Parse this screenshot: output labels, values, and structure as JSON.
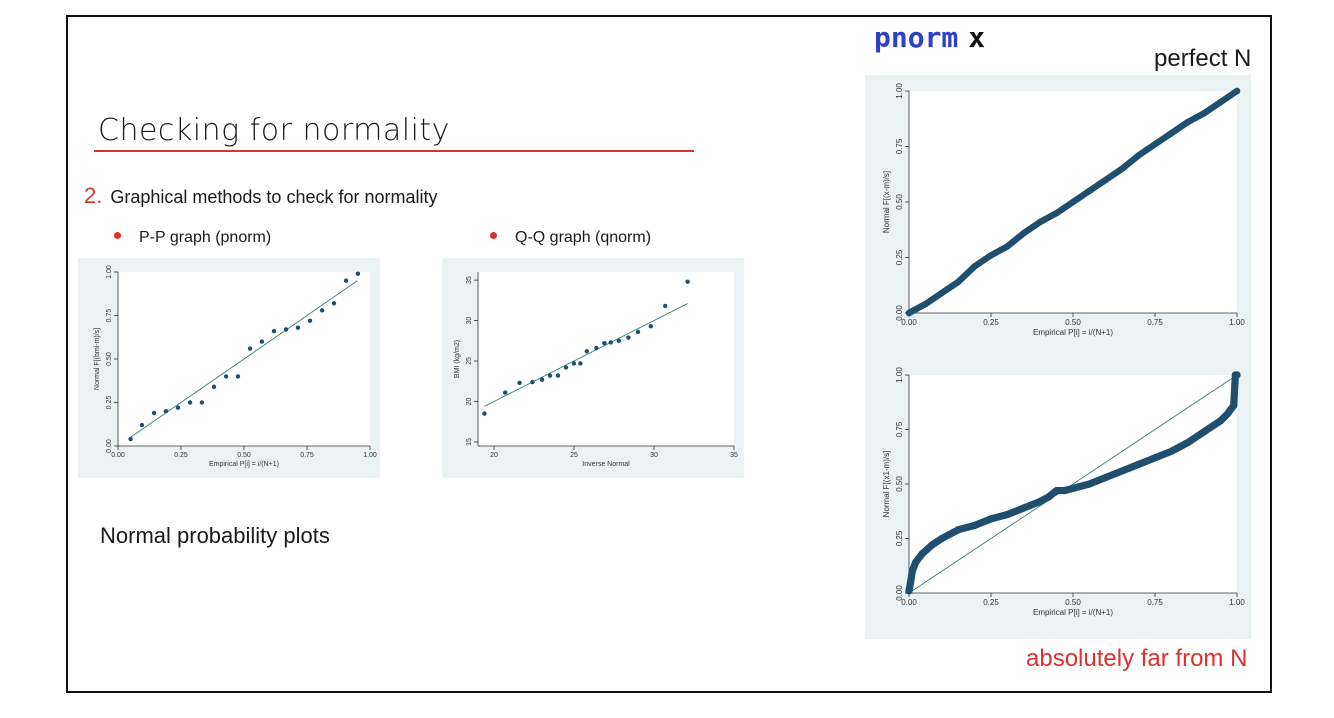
{
  "slide": {
    "title": "Checking for normality",
    "subhead_number": "2.",
    "subhead_text": "Graphical methods to check for normality",
    "bullets": [
      "P-P graph  (pnorm)",
      "Q-Q graph (qnorm)"
    ],
    "caption": "Normal probability plots",
    "command": {
      "name": "pnorm",
      "arg": "x"
    },
    "label_perfect": "perfect N",
    "label_far": "absolutely far from N"
  },
  "colors": {
    "accent_red": "#d9322f",
    "command_blue": "#2e3fc8",
    "plot_bg": "#eaf2f3",
    "marker": "#1f4e6e",
    "fit_line": "#3e7f74"
  },
  "chart_data": [
    {
      "id": "pp",
      "type": "scatter",
      "title": "",
      "xlabel": "Empirical P[i] = i/(N+1)",
      "ylabel": "Normal F[(bmi-m)/s]",
      "xlim": [
        0,
        1
      ],
      "ylim": [
        0,
        1
      ],
      "xticks": [
        0,
        0.25,
        0.5,
        0.75,
        1
      ],
      "xtick_labels": [
        "0.00",
        "0.25",
        "0.50",
        "0.75",
        "1.00"
      ],
      "yticks": [
        0,
        0.25,
        0.5,
        0.75,
        1
      ],
      "ytick_labels": [
        "0.00",
        "0.25",
        "0.50",
        "0.75",
        "1.00"
      ],
      "reference_line": {
        "x": [
          0.05,
          0.95
        ],
        "y": [
          0.05,
          0.95
        ]
      },
      "points": {
        "x": [
          0.05,
          0.095,
          0.143,
          0.19,
          0.238,
          0.286,
          0.333,
          0.381,
          0.429,
          0.476,
          0.524,
          0.571,
          0.619,
          0.667,
          0.714,
          0.762,
          0.81,
          0.857,
          0.905,
          0.952
        ],
        "y": [
          0.04,
          0.12,
          0.19,
          0.2,
          0.22,
          0.25,
          0.25,
          0.34,
          0.4,
          0.4,
          0.56,
          0.6,
          0.66,
          0.67,
          0.68,
          0.72,
          0.78,
          0.82,
          0.95,
          0.99
        ]
      }
    },
    {
      "id": "qq",
      "type": "scatter",
      "title": "",
      "xlabel": "Inverse Normal",
      "ylabel": "BMI (kg/m2)",
      "xlim": [
        19,
        35
      ],
      "ylim": [
        14.5,
        36
      ],
      "xticks": [
        20,
        25,
        30,
        35
      ],
      "xtick_labels": [
        "20",
        "25",
        "30",
        "35"
      ],
      "yticks": [
        15,
        20,
        25,
        30,
        35
      ],
      "ytick_labels": [
        "15",
        "20",
        "25",
        "30",
        "35"
      ],
      "reference_line": {
        "x": [
          19.4,
          32.1
        ],
        "y": [
          19.4,
          32.1
        ]
      },
      "points": {
        "x": [
          19.4,
          20.7,
          21.6,
          22.4,
          23.0,
          23.5,
          24.0,
          24.5,
          25.0,
          25.4,
          25.8,
          26.4,
          26.9,
          27.3,
          27.8,
          28.4,
          29.0,
          29.8,
          30.7,
          32.1
        ],
        "y": [
          18.5,
          21.1,
          22.3,
          22.4,
          22.7,
          23.2,
          23.2,
          24.2,
          24.7,
          24.7,
          26.2,
          26.6,
          27.2,
          27.3,
          27.5,
          27.9,
          28.6,
          29.3,
          31.8,
          34.8
        ]
      }
    },
    {
      "id": "perfect",
      "type": "scatter",
      "title": "",
      "xlabel": "Empirical P[i] = i/(N+1)",
      "ylabel": "Normal F[(x-m)/s]",
      "xlim": [
        0,
        1
      ],
      "ylim": [
        0,
        1
      ],
      "xticks": [
        0,
        0.25,
        0.5,
        0.75,
        1
      ],
      "xtick_labels": [
        "0.00",
        "0.25",
        "0.50",
        "0.75",
        "1.00"
      ],
      "yticks": [
        0,
        0.25,
        0.5,
        0.75,
        1
      ],
      "ytick_labels": [
        "0.00",
        "0.25",
        "0.50",
        "0.75",
        "1.00"
      ],
      "points": {
        "x": [
          0.0,
          0.05,
          0.1,
          0.15,
          0.2,
          0.25,
          0.3,
          0.35,
          0.4,
          0.45,
          0.5,
          0.55,
          0.6,
          0.65,
          0.7,
          0.75,
          0.8,
          0.85,
          0.9,
          0.95,
          1.0
        ],
        "y": [
          0.0,
          0.04,
          0.09,
          0.14,
          0.21,
          0.26,
          0.3,
          0.36,
          0.41,
          0.45,
          0.5,
          0.55,
          0.6,
          0.65,
          0.71,
          0.76,
          0.81,
          0.86,
          0.9,
          0.95,
          1.0
        ]
      }
    },
    {
      "id": "far",
      "type": "scatter",
      "title": "",
      "xlabel": "Empirical P[i] = i/(N+1)",
      "ylabel": "Normal F[(x1-m)/s]",
      "xlim": [
        0,
        1
      ],
      "ylim": [
        0,
        1
      ],
      "xticks": [
        0,
        0.25,
        0.5,
        0.75,
        1
      ],
      "xtick_labels": [
        "0.00",
        "0.25",
        "0.50",
        "0.75",
        "1.00"
      ],
      "yticks": [
        0,
        0.25,
        0.5,
        0.75,
        1
      ],
      "ytick_labels": [
        "0.00",
        "0.25",
        "0.50",
        "0.75",
        "1.00"
      ],
      "reference_line": {
        "x": [
          0,
          1
        ],
        "y": [
          0,
          1
        ]
      },
      "points": {
        "x": [
          0.0,
          0.005,
          0.01,
          0.02,
          0.04,
          0.07,
          0.1,
          0.15,
          0.2,
          0.25,
          0.3,
          0.35,
          0.4,
          0.425,
          0.45,
          0.475,
          0.5,
          0.55,
          0.6,
          0.65,
          0.7,
          0.75,
          0.8,
          0.85,
          0.9,
          0.93,
          0.95,
          0.97,
          0.98,
          0.99,
          0.995,
          1.0
        ],
        "y": [
          0.01,
          0.05,
          0.1,
          0.14,
          0.18,
          0.22,
          0.25,
          0.29,
          0.31,
          0.34,
          0.36,
          0.39,
          0.42,
          0.44,
          0.47,
          0.47,
          0.48,
          0.5,
          0.53,
          0.56,
          0.59,
          0.62,
          0.65,
          0.69,
          0.74,
          0.77,
          0.79,
          0.82,
          0.84,
          0.86,
          1.0,
          1.0
        ]
      }
    }
  ]
}
